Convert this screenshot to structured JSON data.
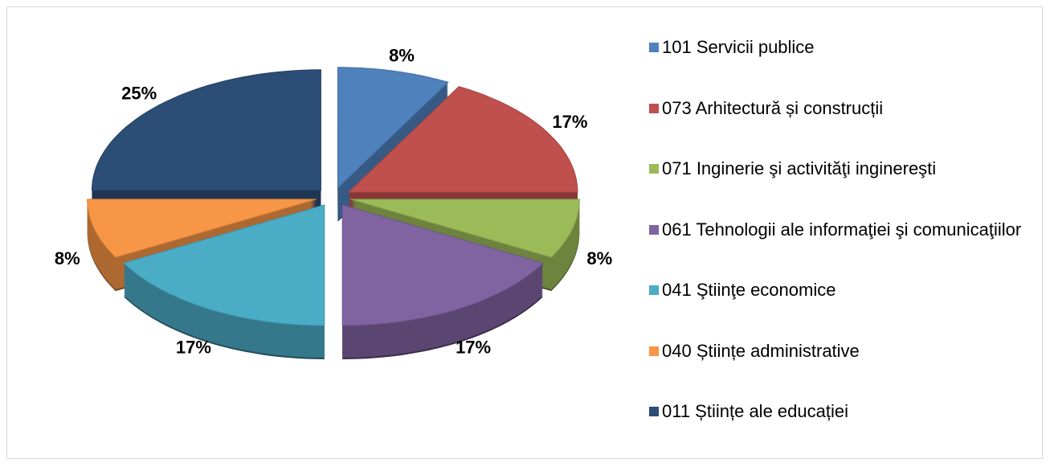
{
  "chart_data": {
    "type": "pie",
    "categories": [
      "101 Servicii publice",
      "073 Arhitectură și construcții",
      "071 Inginerie şi activităţi inginereşti",
      "061 Tehnologii ale informaţiei şi comunicaţiilor",
      "041 Ştiinţe economice",
      "040 Științe administrative",
      "011 Științe ale educației"
    ],
    "values": [
      8,
      17,
      8,
      17,
      17,
      8,
      25
    ],
    "value_labels": [
      "8%",
      "17%",
      "8%",
      "17%",
      "17%",
      "8%",
      "25%"
    ],
    "colors": [
      "#4f81bd",
      "#c0504d",
      "#9bbb59",
      "#8064a2",
      "#4bacc6",
      "#f79646",
      "#2c4d75"
    ],
    "legend": "right"
  }
}
